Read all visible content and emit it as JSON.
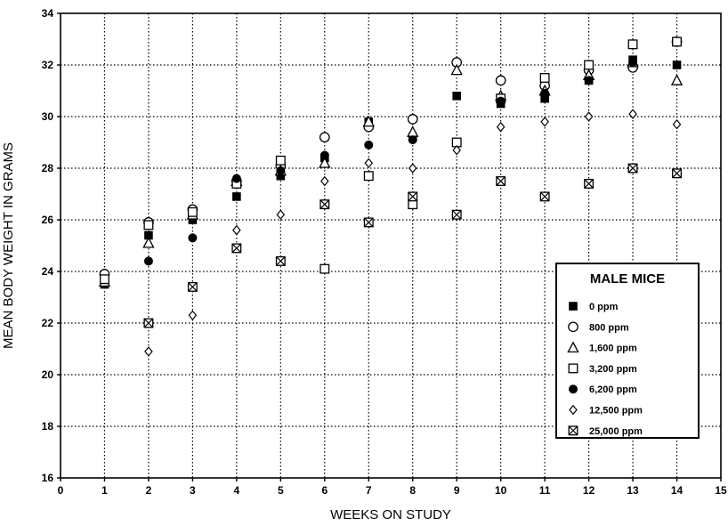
{
  "chart_data": {
    "type": "scatter",
    "xlabel": "WEEKS ON STUDY",
    "ylabel": "MEAN BODY WEIGHT IN GRAMS",
    "xlim": [
      0,
      15
    ],
    "ylim": [
      16,
      34
    ],
    "xticks": [
      0,
      1,
      2,
      3,
      4,
      5,
      6,
      7,
      8,
      9,
      10,
      11,
      12,
      13,
      14,
      15
    ],
    "yticks": [
      16,
      18,
      20,
      22,
      24,
      26,
      28,
      30,
      32,
      34
    ],
    "grid": true,
    "legend_position": "bottom-right",
    "legend_title": "MALE MICE",
    "series": [
      {
        "name": "0 ppm",
        "marker": "filled-square",
        "x": [
          1,
          2,
          3,
          4,
          5,
          6,
          7,
          8,
          9,
          10,
          11,
          12,
          13,
          14
        ],
        "y": [
          23.5,
          25.4,
          26.0,
          26.9,
          27.7,
          28.4,
          29.8,
          29.2,
          30.8,
          30.5,
          30.7,
          31.4,
          32.2,
          32.0
        ]
      },
      {
        "name": "800 ppm",
        "marker": "open-circle",
        "x": [
          1,
          2,
          3,
          4,
          5,
          6,
          7,
          8,
          9,
          10,
          11,
          12,
          13,
          14
        ],
        "y": [
          23.9,
          25.9,
          26.4,
          27.5,
          28.1,
          29.2,
          29.6,
          29.9,
          32.1,
          31.4,
          31.2,
          31.8,
          31.9,
          32.9
        ]
      },
      {
        "name": "1,600 ppm",
        "marker": "open-triangle",
        "x": [
          1,
          2,
          3,
          4,
          5,
          6,
          7,
          8,
          9,
          10,
          11,
          12,
          13,
          14
        ],
        "y": [
          23.6,
          25.1,
          26.2,
          27.5,
          27.9,
          28.2,
          29.8,
          29.4,
          31.8,
          30.8,
          31.0,
          31.6,
          32.1,
          31.4
        ]
      },
      {
        "name": "3,200 ppm",
        "marker": "open-square",
        "x": [
          1,
          2,
          3,
          4,
          5,
          6,
          7,
          8,
          9,
          10,
          11,
          12,
          13,
          14
        ],
        "y": [
          23.7,
          25.8,
          26.3,
          27.4,
          28.3,
          24.1,
          27.7,
          26.6,
          29.0,
          30.7,
          31.5,
          32.0,
          32.8,
          32.9
        ]
      },
      {
        "name": "6,200 ppm",
        "marker": "filled-circle",
        "x": [
          2,
          3,
          4,
          5,
          6,
          7,
          8,
          10,
          11,
          12,
          13
        ],
        "y": [
          24.4,
          25.3,
          27.6,
          27.9,
          28.5,
          28.9,
          29.1,
          30.6,
          30.9,
          31.4,
          32.1
        ]
      },
      {
        "name": "12,500 ppm",
        "marker": "open-diamond",
        "x": [
          2,
          3,
          4,
          5,
          6,
          7,
          8,
          9,
          10,
          11,
          12,
          13,
          14
        ],
        "y": [
          20.9,
          22.3,
          25.6,
          26.2,
          27.5,
          28.2,
          28.0,
          28.7,
          29.6,
          29.8,
          30.0,
          30.1,
          29.7
        ]
      },
      {
        "name": "25,000 ppm",
        "marker": "crossed-square",
        "x": [
          2,
          3,
          4,
          5,
          6,
          7,
          8,
          9,
          10,
          11,
          12,
          13,
          14
        ],
        "y": [
          22.0,
          23.4,
          24.9,
          24.4,
          26.6,
          25.9,
          26.9,
          26.2,
          27.5,
          26.9,
          27.4,
          28.0,
          27.8
        ]
      }
    ]
  }
}
